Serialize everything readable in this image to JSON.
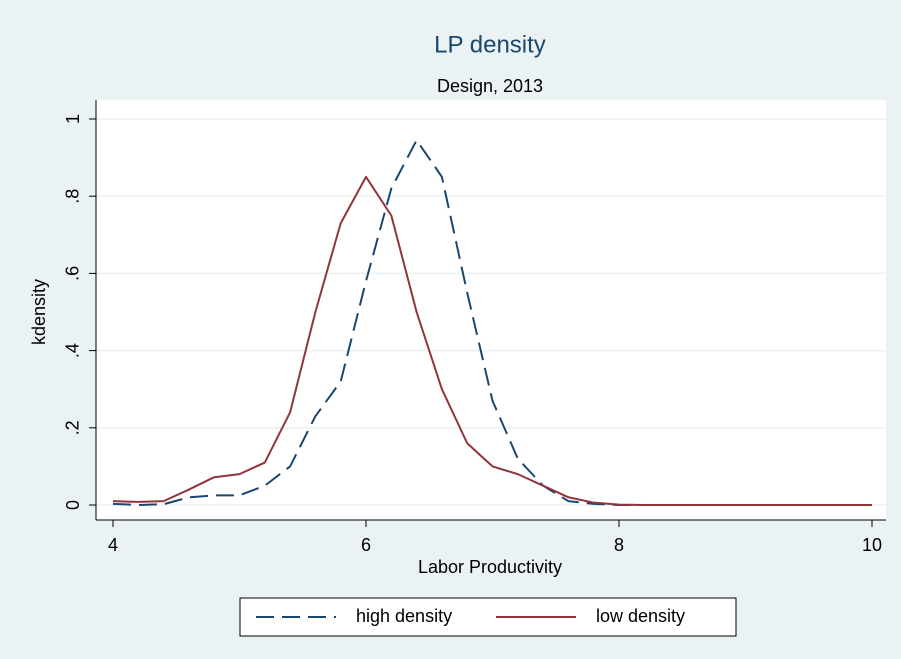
{
  "chart_data": {
    "type": "line",
    "title": "LP density",
    "subtitle": "Design, 2013",
    "x_label": "Labor Productivity",
    "y_label": "kdensity",
    "x": [
      4,
      4.2,
      4.4,
      4.6,
      4.8,
      5,
      5.2,
      5.4,
      5.6,
      5.8,
      6,
      6.2,
      6.4,
      6.6,
      6.8,
      7,
      7.2,
      7.4,
      7.6,
      7.8,
      8,
      8.2,
      8.4,
      8.6,
      8.8,
      9,
      9.2,
      9.4,
      9.6,
      9.8,
      10
    ],
    "series": [
      {
        "name": "high density",
        "color": "#1a476f",
        "dashed": true,
        "values": [
          0.003,
          0,
          0.002,
          0.02,
          0.025,
          0.025,
          0.05,
          0.1,
          0.23,
          0.32,
          0.58,
          0.82,
          0.945,
          0.85,
          0.55,
          0.27,
          0.12,
          0.05,
          0.01,
          0.003,
          0,
          0,
          0,
          0,
          0,
          0,
          0,
          0,
          0,
          0,
          0
        ]
      },
      {
        "name": "low density",
        "color": "#90353b",
        "dashed": false,
        "values": [
          0.01,
          0.008,
          0.01,
          0.04,
          0.072,
          0.08,
          0.11,
          0.24,
          0.5,
          0.73,
          0.85,
          0.75,
          0.5,
          0.3,
          0.16,
          0.1,
          0.08,
          0.05,
          0.02,
          0.006,
          0.001,
          0,
          0,
          0,
          0,
          0,
          0,
          0,
          0,
          0,
          0
        ]
      }
    ],
    "xlim": [
      4,
      10
    ],
    "xticks": [
      4,
      6,
      8,
      10
    ],
    "ylim": [
      0,
      1
    ],
    "yticks": [
      0,
      {
        "value": 0.2,
        "label": ".2"
      },
      {
        "value": 0.4,
        "label": ".4"
      },
      {
        "value": 0.6,
        "label": ".6"
      },
      {
        "value": 0.8,
        "label": ".8"
      },
      1
    ],
    "grid": true,
    "legend": "bottom"
  }
}
